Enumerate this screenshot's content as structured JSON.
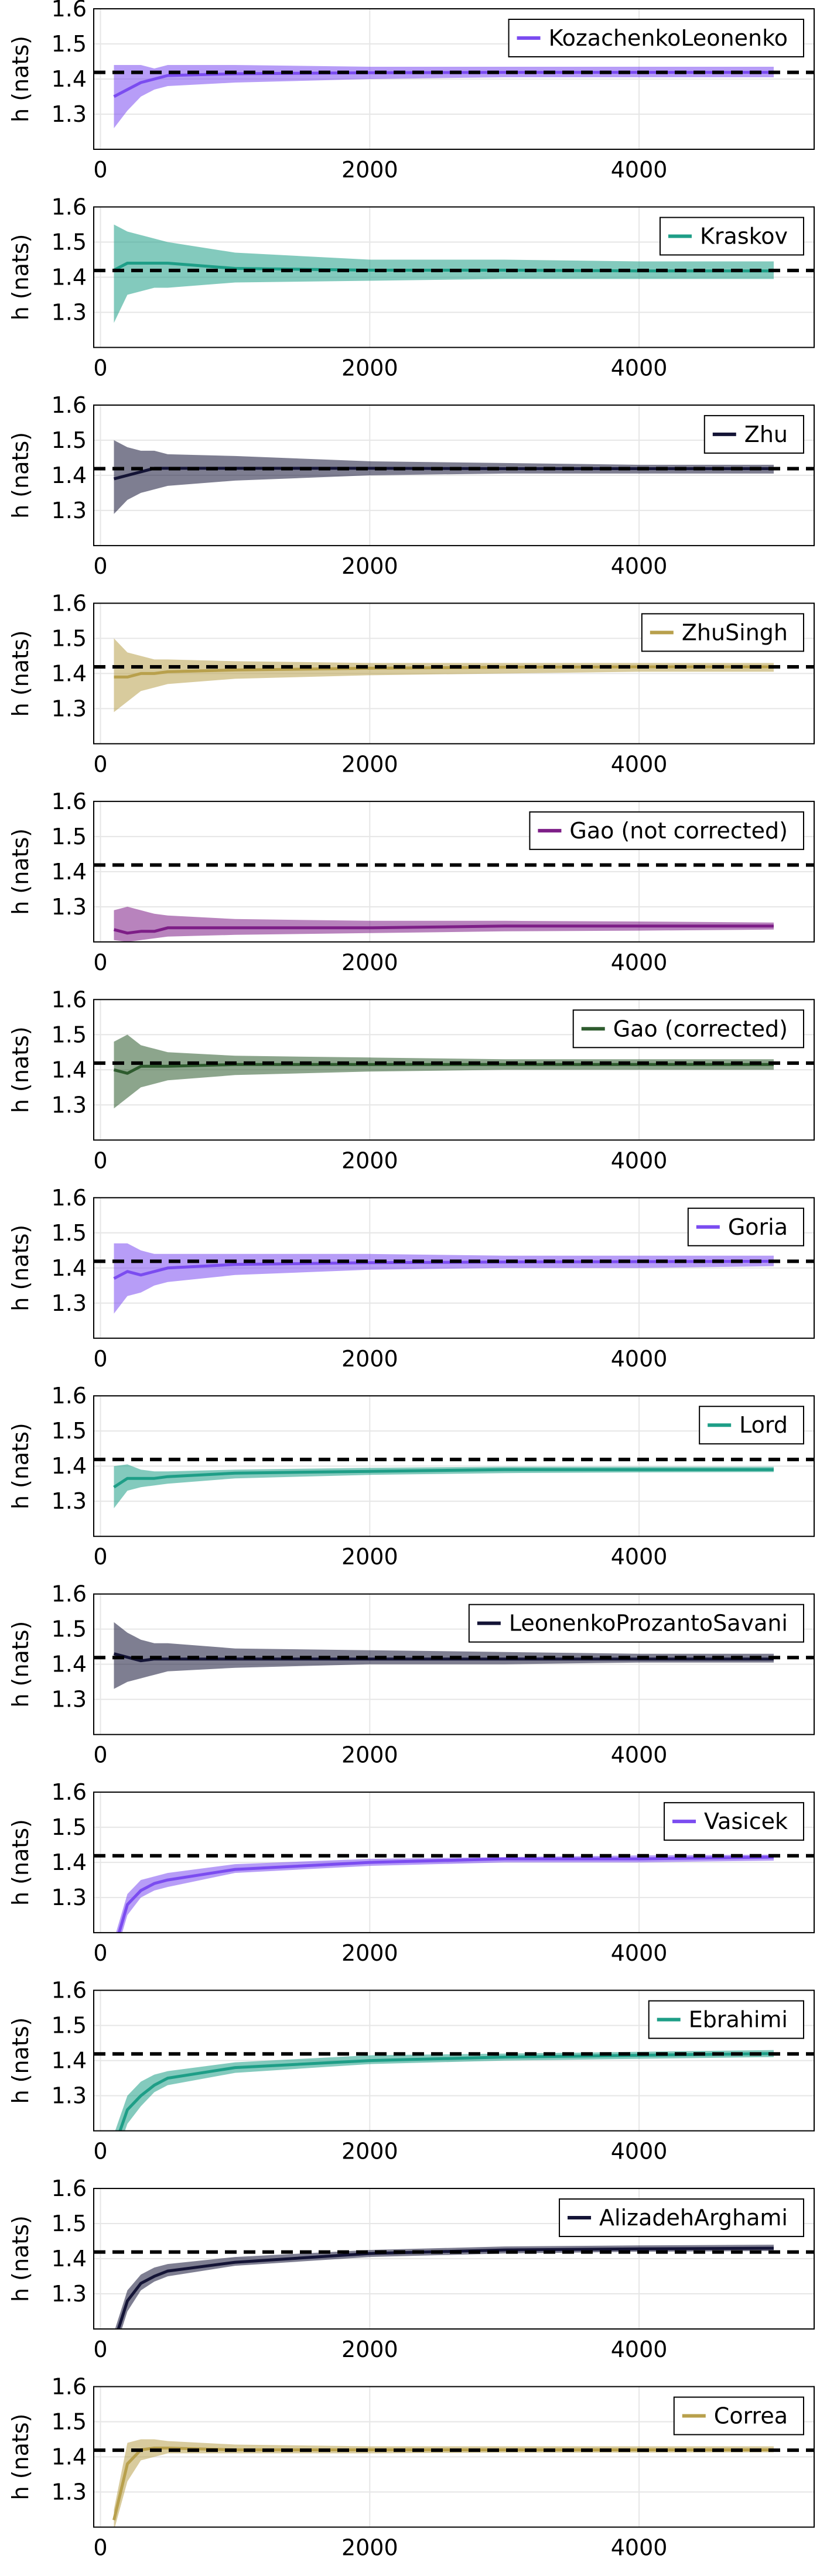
{
  "chart_data": [
    {
      "type": "line",
      "legend_entry": "KozachenkoLeonenko",
      "ylabel": "h (nats)",
      "color": "#7b4cf0",
      "x": [
        100,
        200,
        300,
        400,
        500,
        1000,
        2000,
        3000,
        4000,
        5000
      ],
      "mean": [
        1.35,
        1.37,
        1.39,
        1.4,
        1.41,
        1.415,
        1.418,
        1.419,
        1.419,
        1.419
      ],
      "lower": [
        1.26,
        1.31,
        1.35,
        1.37,
        1.38,
        1.39,
        1.4,
        1.405,
        1.405,
        1.405
      ],
      "upper": [
        1.44,
        1.44,
        1.44,
        1.43,
        1.44,
        1.44,
        1.435,
        1.435,
        1.435,
        1.435
      ],
      "reference": 1.419,
      "xlim": [
        -50,
        5300
      ],
      "ylim": [
        1.2,
        1.6
      ],
      "xticks": [
        0,
        2000,
        4000
      ],
      "yticks": [
        1.3,
        1.4,
        1.5,
        1.6
      ],
      "grid": true,
      "legend_position": "top-right"
    },
    {
      "type": "line",
      "legend_entry": "Kraskov",
      "ylabel": "h (nats)",
      "color": "#1e9e87",
      "x": [
        100,
        200,
        300,
        400,
        500,
        1000,
        2000,
        3000,
        4000,
        5000
      ],
      "mean": [
        1.42,
        1.44,
        1.44,
        1.44,
        1.44,
        1.425,
        1.42,
        1.42,
        1.418,
        1.418
      ],
      "lower": [
        1.27,
        1.35,
        1.36,
        1.37,
        1.37,
        1.385,
        1.39,
        1.395,
        1.395,
        1.395
      ],
      "upper": [
        1.55,
        1.53,
        1.52,
        1.51,
        1.5,
        1.47,
        1.45,
        1.45,
        1.445,
        1.445
      ],
      "reference": 1.419,
      "xlim": [
        -50,
        5300
      ],
      "ylim": [
        1.2,
        1.6
      ],
      "xticks": [
        0,
        2000,
        4000
      ],
      "yticks": [
        1.3,
        1.4,
        1.5,
        1.6
      ],
      "grid": true,
      "legend_position": "top-right"
    },
    {
      "type": "line",
      "legend_entry": "Zhu",
      "ylabel": "h (nats)",
      "color": "#141436",
      "x": [
        100,
        200,
        300,
        400,
        500,
        1000,
        2000,
        3000,
        4000,
        5000
      ],
      "mean": [
        1.39,
        1.4,
        1.41,
        1.42,
        1.42,
        1.42,
        1.42,
        1.419,
        1.419,
        1.419
      ],
      "lower": [
        1.29,
        1.33,
        1.35,
        1.36,
        1.37,
        1.385,
        1.4,
        1.405,
        1.405,
        1.405
      ],
      "upper": [
        1.5,
        1.48,
        1.47,
        1.47,
        1.46,
        1.455,
        1.44,
        1.435,
        1.43,
        1.43
      ],
      "reference": 1.419,
      "xlim": [
        -50,
        5300
      ],
      "ylim": [
        1.2,
        1.6
      ],
      "xticks": [
        0,
        2000,
        4000
      ],
      "yticks": [
        1.3,
        1.4,
        1.5,
        1.6
      ],
      "grid": true,
      "legend_position": "top-right"
    },
    {
      "type": "line",
      "legend_entry": "ZhuSingh",
      "ylabel": "h (nats)",
      "color": "#b8a04c",
      "x": [
        100,
        200,
        300,
        400,
        500,
        1000,
        2000,
        3000,
        4000,
        5000
      ],
      "mean": [
        1.39,
        1.39,
        1.4,
        1.4,
        1.405,
        1.41,
        1.415,
        1.418,
        1.419,
        1.419
      ],
      "lower": [
        1.29,
        1.32,
        1.35,
        1.36,
        1.37,
        1.385,
        1.395,
        1.4,
        1.405,
        1.405
      ],
      "upper": [
        1.5,
        1.46,
        1.45,
        1.44,
        1.44,
        1.435,
        1.43,
        1.43,
        1.43,
        1.43
      ],
      "reference": 1.419,
      "xlim": [
        -50,
        5300
      ],
      "ylim": [
        1.2,
        1.6
      ],
      "xticks": [
        0,
        2000,
        4000
      ],
      "yticks": [
        1.3,
        1.4,
        1.5,
        1.6
      ],
      "grid": true,
      "legend_position": "top-right"
    },
    {
      "type": "line",
      "legend_entry": "Gao (not corrected)",
      "ylabel": "h (nats)",
      "color": "#7d1e87",
      "x": [
        100,
        200,
        300,
        400,
        500,
        1000,
        2000,
        3000,
        4000,
        5000
      ],
      "mean": [
        1.235,
        1.225,
        1.23,
        1.23,
        1.24,
        1.24,
        1.24,
        1.245,
        1.245,
        1.245
      ],
      "lower": [
        1.205,
        1.2,
        1.205,
        1.21,
        1.215,
        1.22,
        1.225,
        1.23,
        1.232,
        1.235
      ],
      "upper": [
        1.29,
        1.3,
        1.29,
        1.28,
        1.275,
        1.265,
        1.26,
        1.26,
        1.258,
        1.255
      ],
      "reference": 1.419,
      "xlim": [
        -50,
        5300
      ],
      "ylim": [
        1.2,
        1.6
      ],
      "xticks": [
        0,
        2000,
        4000
      ],
      "yticks": [
        1.3,
        1.4,
        1.5,
        1.6
      ],
      "grid": true,
      "legend_position": "top-right"
    },
    {
      "type": "line",
      "legend_entry": "Gao (corrected)",
      "ylabel": "h (nats)",
      "color": "#2e5b2e",
      "x": [
        100,
        200,
        300,
        400,
        500,
        1000,
        2000,
        3000,
        4000,
        5000
      ],
      "mean": [
        1.4,
        1.39,
        1.41,
        1.41,
        1.41,
        1.415,
        1.415,
        1.415,
        1.415,
        1.415
      ],
      "lower": [
        1.29,
        1.32,
        1.35,
        1.36,
        1.37,
        1.385,
        1.395,
        1.4,
        1.4,
        1.4
      ],
      "upper": [
        1.48,
        1.5,
        1.47,
        1.46,
        1.45,
        1.44,
        1.435,
        1.43,
        1.43,
        1.43
      ],
      "reference": 1.419,
      "xlim": [
        -50,
        5300
      ],
      "ylim": [
        1.2,
        1.6
      ],
      "xticks": [
        0,
        2000,
        4000
      ],
      "yticks": [
        1.3,
        1.4,
        1.5,
        1.6
      ],
      "grid": true,
      "legend_position": "top-right"
    },
    {
      "type": "line",
      "legend_entry": "Goria",
      "ylabel": "h (nats)",
      "color": "#7b4cf0",
      "x": [
        100,
        200,
        300,
        400,
        500,
        1000,
        2000,
        3000,
        4000,
        5000
      ],
      "mean": [
        1.37,
        1.39,
        1.38,
        1.39,
        1.4,
        1.41,
        1.415,
        1.417,
        1.418,
        1.419
      ],
      "lower": [
        1.27,
        1.32,
        1.33,
        1.35,
        1.36,
        1.38,
        1.395,
        1.4,
        1.4,
        1.405
      ],
      "upper": [
        1.47,
        1.47,
        1.45,
        1.44,
        1.44,
        1.44,
        1.44,
        1.435,
        1.435,
        1.435
      ],
      "reference": 1.419,
      "xlim": [
        -50,
        5300
      ],
      "ylim": [
        1.2,
        1.6
      ],
      "xticks": [
        0,
        2000,
        4000
      ],
      "yticks": [
        1.3,
        1.4,
        1.5,
        1.6
      ],
      "grid": true,
      "legend_position": "top-right"
    },
    {
      "type": "line",
      "legend_entry": "Lord",
      "ylabel": "h (nats)",
      "color": "#1e9e87",
      "x": [
        100,
        200,
        300,
        400,
        500,
        1000,
        2000,
        3000,
        4000,
        5000
      ],
      "mean": [
        1.34,
        1.365,
        1.365,
        1.365,
        1.37,
        1.38,
        1.385,
        1.39,
        1.39,
        1.39
      ],
      "lower": [
        1.28,
        1.33,
        1.34,
        1.345,
        1.35,
        1.365,
        1.375,
        1.38,
        1.382,
        1.383
      ],
      "upper": [
        1.4,
        1.405,
        1.39,
        1.385,
        1.385,
        1.39,
        1.395,
        1.398,
        1.398,
        1.398
      ],
      "reference": 1.419,
      "xlim": [
        -50,
        5300
      ],
      "ylim": [
        1.2,
        1.6
      ],
      "xticks": [
        0,
        2000,
        4000
      ],
      "yticks": [
        1.3,
        1.4,
        1.5,
        1.6
      ],
      "grid": true,
      "legend_position": "top-right"
    },
    {
      "type": "line",
      "legend_entry": "LeonenkoProzantoSavani",
      "ylabel": "h (nats)",
      "color": "#141436",
      "x": [
        100,
        200,
        300,
        400,
        500,
        1000,
        2000,
        3000,
        4000,
        5000
      ],
      "mean": [
        1.43,
        1.42,
        1.41,
        1.415,
        1.415,
        1.415,
        1.415,
        1.415,
        1.415,
        1.415
      ],
      "lower": [
        1.33,
        1.35,
        1.36,
        1.37,
        1.38,
        1.39,
        1.4,
        1.4,
        1.405,
        1.405
      ],
      "upper": [
        1.52,
        1.49,
        1.47,
        1.46,
        1.46,
        1.445,
        1.44,
        1.435,
        1.43,
        1.43
      ],
      "reference": 1.419,
      "xlim": [
        -50,
        5300
      ],
      "ylim": [
        1.2,
        1.6
      ],
      "xticks": [
        0,
        2000,
        4000
      ],
      "yticks": [
        1.3,
        1.4,
        1.5,
        1.6
      ],
      "grid": true,
      "legend_position": "top-right"
    },
    {
      "type": "line",
      "legend_entry": "Vasicek",
      "ylabel": "h (nats)",
      "color": "#7b4cf0",
      "x": [
        100,
        200,
        300,
        400,
        500,
        1000,
        2000,
        3000,
        4000,
        5000
      ],
      "mean": [
        1.15,
        1.28,
        1.32,
        1.34,
        1.35,
        1.38,
        1.4,
        1.41,
        1.41,
        1.415
      ],
      "lower": [
        1.12,
        1.25,
        1.3,
        1.32,
        1.33,
        1.37,
        1.39,
        1.4,
        1.4,
        1.405
      ],
      "upper": [
        1.18,
        1.31,
        1.35,
        1.36,
        1.37,
        1.395,
        1.41,
        1.415,
        1.42,
        1.422
      ],
      "reference": 1.419,
      "xlim": [
        -50,
        5300
      ],
      "ylim": [
        1.2,
        1.6
      ],
      "xticks": [
        0,
        2000,
        4000
      ],
      "yticks": [
        1.3,
        1.4,
        1.5,
        1.6
      ],
      "grid": true,
      "legend_position": "top-right"
    },
    {
      "type": "line",
      "legend_entry": "Ebrahimi",
      "ylabel": "h (nats)",
      "color": "#1e9e87",
      "x": [
        100,
        200,
        300,
        400,
        500,
        1000,
        2000,
        3000,
        4000,
        5000
      ],
      "mean": [
        1.15,
        1.26,
        1.3,
        1.33,
        1.35,
        1.38,
        1.4,
        1.41,
        1.415,
        1.42
      ],
      "lower": [
        1.11,
        1.22,
        1.27,
        1.31,
        1.33,
        1.365,
        1.39,
        1.4,
        1.405,
        1.41
      ],
      "upper": [
        1.19,
        1.3,
        1.34,
        1.36,
        1.37,
        1.395,
        1.415,
        1.42,
        1.425,
        1.43
      ],
      "reference": 1.419,
      "xlim": [
        -50,
        5300
      ],
      "ylim": [
        1.2,
        1.6
      ],
      "xticks": [
        0,
        2000,
        4000
      ],
      "yticks": [
        1.3,
        1.4,
        1.5,
        1.6
      ],
      "grid": true,
      "legend_position": "top-right"
    },
    {
      "type": "line",
      "legend_entry": "AlizadehArghami",
      "ylabel": "h (nats)",
      "color": "#141436",
      "x": [
        100,
        200,
        300,
        400,
        500,
        1000,
        2000,
        3000,
        4000,
        5000
      ],
      "mean": [
        1.16,
        1.28,
        1.33,
        1.35,
        1.365,
        1.39,
        1.415,
        1.425,
        1.428,
        1.43
      ],
      "lower": [
        1.13,
        1.25,
        1.31,
        1.335,
        1.35,
        1.38,
        1.405,
        1.415,
        1.42,
        1.422
      ],
      "upper": [
        1.19,
        1.31,
        1.355,
        1.375,
        1.385,
        1.405,
        1.425,
        1.435,
        1.438,
        1.44
      ],
      "reference": 1.419,
      "xlim": [
        -50,
        5300
      ],
      "ylim": [
        1.2,
        1.6
      ],
      "xticks": [
        0,
        2000,
        4000
      ],
      "yticks": [
        1.3,
        1.4,
        1.5,
        1.6
      ],
      "grid": true,
      "legend_position": "top-right"
    },
    {
      "type": "line",
      "legend_entry": "Correa",
      "ylabel": "h (nats)",
      "color": "#b8a04c",
      "x": [
        100,
        200,
        300,
        400,
        500,
        1000,
        2000,
        3000,
        4000,
        5000
      ],
      "mean": [
        1.22,
        1.38,
        1.42,
        1.425,
        1.425,
        1.42,
        1.42,
        1.42,
        1.42,
        1.42
      ],
      "lower": [
        1.19,
        1.33,
        1.39,
        1.4,
        1.41,
        1.41,
        1.41,
        1.412,
        1.412,
        1.413
      ],
      "upper": [
        1.25,
        1.44,
        1.45,
        1.45,
        1.445,
        1.435,
        1.43,
        1.43,
        1.43,
        1.43
      ],
      "reference": 1.419,
      "xlim": [
        -50,
        5300
      ],
      "ylim": [
        1.2,
        1.6
      ],
      "xticks": [
        0,
        2000,
        4000
      ],
      "yticks": [
        1.3,
        1.4,
        1.5,
        1.6
      ],
      "grid": true,
      "legend_position": "top-right"
    }
  ]
}
